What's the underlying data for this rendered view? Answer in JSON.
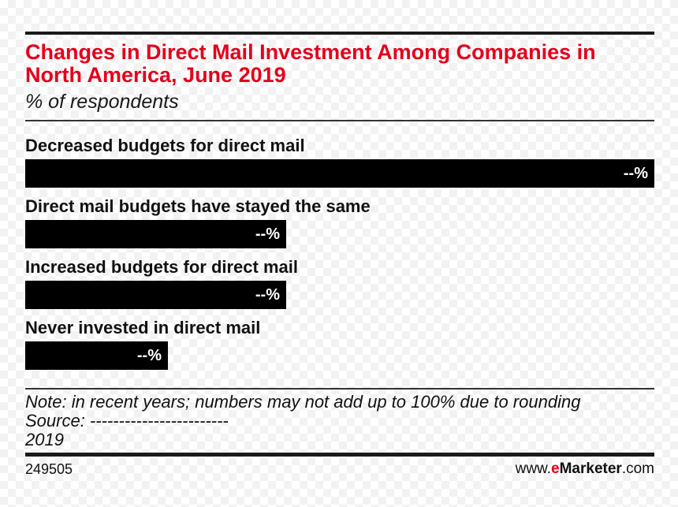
{
  "chart_data": {
    "type": "bar",
    "orientation": "horizontal",
    "title": "Changes in Direct Mail Investment Among Companies in North America, June 2019",
    "subtitle": "% of respondents",
    "categories": [
      "Decreased budgets for direct mail",
      "Direct mail budgets have stayed the same",
      "Increased budgets for direct mail",
      "Never invested in direct mail"
    ],
    "values": [
      100,
      41.5,
      41.5,
      22.7
    ],
    "value_labels": [
      "--%",
      "--%",
      "--%",
      "--%"
    ],
    "xlim": [
      0,
      100
    ],
    "grid": false
  },
  "notes": {
    "note": "Note: in recent years; numbers may not add up to 100% due to rounding",
    "source": "Source: ------------------------",
    "year": "2019"
  },
  "footer": {
    "chart_id": "249505",
    "brand_prefix": "www.",
    "brand_e": "e",
    "brand_marketer": "Marketer",
    "brand_suffix": ".com"
  },
  "colors": {
    "title": "#e5001b",
    "bar": "#000000",
    "brand_accent": "#e5001b"
  }
}
